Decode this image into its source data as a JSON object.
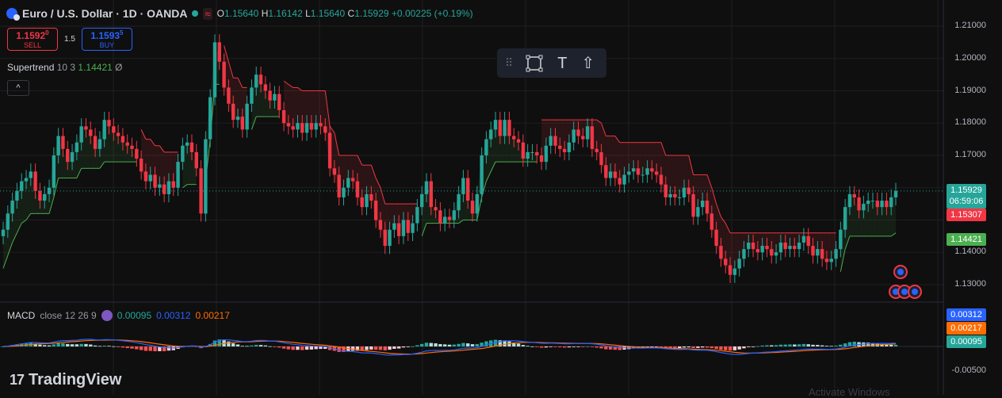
{
  "header": {
    "symbol": "Euro / U.S. Dollar · 1D · OANDA",
    "wave_icon": "≈",
    "o_label": "O",
    "o_value": "1.15640",
    "h_label": "H",
    "h_value": "1.16142",
    "l_label": "L",
    "l_value": "1.15640",
    "c_label": "C",
    "c_value": "1.15929",
    "change": "+0.00225 (+0.19%)"
  },
  "trade": {
    "sell_price_main": "1.1592",
    "sell_price_sup": "0",
    "sell_label": "SELL",
    "spread": "1.5",
    "buy_price_main": "1.1593",
    "buy_price_sup": "5",
    "buy_label": "BUY"
  },
  "supertrend": {
    "name": "Supertrend",
    "params": "10 3",
    "value": "1.14421",
    "extra": "Ø"
  },
  "macd": {
    "name": "MACD",
    "params": "close 12 26 9",
    "hist": "0.00095",
    "macd": "0.00312",
    "signal": "0.00217"
  },
  "toolbar": {
    "grip": "⠿",
    "rect_icon": "rectangle-tool",
    "text_icon": "T",
    "up_icon": "⇧"
  },
  "collapse_label": "^",
  "price_axis": {
    "ticks": [
      "1.21000",
      "1.20000",
      "1.19000",
      "1.18000",
      "1.17000",
      "1.14000",
      "1.13000"
    ],
    "price_tag": "1.15929",
    "countdown": "06:59:06",
    "supertrend_red_tag": "1.15307",
    "supertrend_green_tag": "1.14421"
  },
  "macd_axis": {
    "macd_tag": "0.00312",
    "signal_tag": "0.00217",
    "hist_tag": "0.00095",
    "tick": "-0.00500"
  },
  "logo": {
    "text": "TradingView",
    "mark": "17"
  },
  "watermark": "Activate Windows",
  "colors": {
    "up": "#26a69a",
    "down": "#f23645",
    "st_up": "#4caf50",
    "st_down": "#f23645",
    "macd": "#2962ff",
    "signal": "#ff6d00",
    "bg": "#0f0f0f",
    "grid": "#1f1f1f"
  },
  "chart_data": {
    "type": "candlestick",
    "title": "Euro / U.S. Dollar · 1D · OANDA",
    "ylim": [
      1.125,
      1.213
    ],
    "close": [
      1.147,
      1.152,
      1.156,
      1.159,
      1.162,
      1.163,
      1.165,
      1.159,
      1.156,
      1.158,
      1.16,
      1.17,
      1.176,
      1.172,
      1.168,
      1.171,
      1.174,
      1.179,
      1.178,
      1.176,
      1.172,
      1.175,
      1.181,
      1.179,
      1.177,
      1.176,
      1.174,
      1.173,
      1.172,
      1.169,
      1.165,
      1.162,
      1.164,
      1.16,
      1.161,
      1.158,
      1.162,
      1.16,
      1.168,
      1.173,
      1.174,
      1.171,
      1.166,
      1.152,
      1.175,
      1.188,
      1.205,
      1.199,
      1.191,
      1.186,
      1.181,
      1.182,
      1.178,
      1.186,
      1.191,
      1.195,
      1.192,
      1.19,
      1.187,
      1.189,
      1.184,
      1.18,
      1.179,
      1.178,
      1.18,
      1.177,
      1.18,
      1.178,
      1.18,
      1.179,
      1.177,
      1.166,
      1.164,
      1.157,
      1.16,
      1.163,
      1.162,
      1.157,
      1.154,
      1.158,
      1.156,
      1.15,
      1.147,
      1.142,
      1.147,
      1.149,
      1.145,
      1.15,
      1.146,
      1.149,
      1.154,
      1.158,
      1.162,
      1.154,
      1.153,
      1.149,
      1.151,
      1.15,
      1.153,
      1.158,
      1.163,
      1.156,
      1.152,
      1.158,
      1.17,
      1.175,
      1.178,
      1.181,
      1.176,
      1.181,
      1.176,
      1.175,
      1.174,
      1.169,
      1.171,
      1.171,
      1.17,
      1.168,
      1.173,
      1.176,
      1.173,
      1.172,
      1.171,
      1.174,
      1.178,
      1.176,
      1.175,
      1.179,
      1.172,
      1.171,
      1.167,
      1.163,
      1.165,
      1.163,
      1.161,
      1.164,
      1.165,
      1.166,
      1.164,
      1.164,
      1.166,
      1.165,
      1.164,
      1.161,
      1.157,
      1.158,
      1.157,
      1.157,
      1.16,
      1.158,
      1.151,
      1.154,
      1.156,
      1.152,
      1.147,
      1.142,
      1.138,
      1.136,
      1.133,
      1.135,
      1.138,
      1.141,
      1.143,
      1.141,
      1.14,
      1.142,
      1.141,
      1.139,
      1.14,
      1.143,
      1.141,
      1.142,
      1.141,
      1.143,
      1.145,
      1.142,
      1.139,
      1.141,
      1.138,
      1.137,
      1.138,
      1.141,
      1.147,
      1.154,
      1.158,
      1.157,
      1.153,
      1.155,
      1.156,
      1.156,
      1.154,
      1.156,
      1.154,
      1.157,
      1.159
    ]
  }
}
